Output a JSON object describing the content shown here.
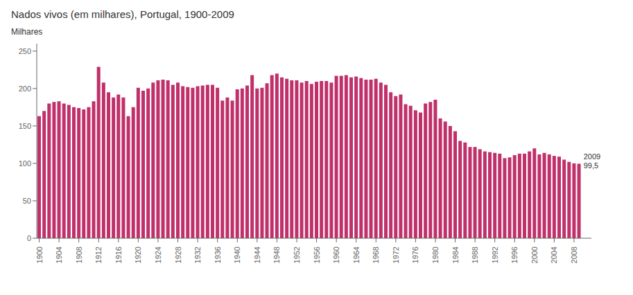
{
  "chart_data": {
    "type": "bar",
    "title": "Nados vivos (em milhares), Portugal, 1900-2009",
    "ylabel": "Milhares",
    "annotation": "2009\n99,5",
    "color": "#c0306a",
    "x": [
      1900,
      1901,
      1902,
      1903,
      1904,
      1905,
      1906,
      1907,
      1908,
      1909,
      1910,
      1911,
      1912,
      1913,
      1914,
      1915,
      1916,
      1917,
      1918,
      1919,
      1920,
      1921,
      1922,
      1923,
      1924,
      1925,
      1926,
      1927,
      1928,
      1929,
      1930,
      1931,
      1932,
      1933,
      1934,
      1935,
      1936,
      1937,
      1938,
      1939,
      1940,
      1941,
      1942,
      1943,
      1944,
      1945,
      1946,
      1947,
      1948,
      1949,
      1950,
      1951,
      1952,
      1953,
      1954,
      1955,
      1956,
      1957,
      1958,
      1959,
      1960,
      1961,
      1962,
      1963,
      1964,
      1965,
      1966,
      1967,
      1968,
      1969,
      1970,
      1971,
      1972,
      1973,
      1974,
      1975,
      1976,
      1977,
      1978,
      1979,
      1980,
      1981,
      1982,
      1983,
      1984,
      1985,
      1986,
      1987,
      1988,
      1989,
      1990,
      1991,
      1992,
      1993,
      1994,
      1995,
      1996,
      1997,
      1998,
      1999,
      2000,
      2001,
      2002,
      2003,
      2004,
      2005,
      2006,
      2007,
      2008,
      2009
    ],
    "values": [
      163,
      170,
      180,
      182,
      183,
      180,
      178,
      175,
      174,
      172,
      175,
      183,
      229,
      208,
      195,
      188,
      192,
      188,
      163,
      175,
      201,
      197,
      200,
      208,
      211,
      212,
      211,
      205,
      208,
      203,
      202,
      201,
      203,
      204,
      205,
      205,
      201,
      184,
      188,
      184,
      199,
      200,
      204,
      218,
      200,
      201,
      207,
      218,
      220,
      215,
      213,
      211,
      211,
      208,
      210,
      206,
      209,
      210,
      210,
      208,
      217,
      217,
      218,
      215,
      216,
      214,
      212,
      212,
      213,
      208,
      205,
      195,
      190,
      192,
      179,
      177,
      171,
      168,
      180,
      182,
      185,
      160,
      156,
      150,
      143,
      130,
      128,
      122,
      122,
      119,
      116,
      115,
      114,
      113,
      107,
      108,
      111,
      113,
      113,
      116,
      120,
      112,
      114,
      112,
      110,
      109,
      105,
      102,
      100,
      99.5
    ],
    "xlim": [
      1899.5,
      2011.5
    ],
    "xticks": [
      1900,
      1904,
      1908,
      1912,
      1916,
      1920,
      1924,
      1928,
      1932,
      1936,
      1940,
      1944,
      1948,
      1952,
      1956,
      1960,
      1964,
      1968,
      1972,
      1976,
      1980,
      1984,
      1988,
      1992,
      1996,
      2000,
      2004,
      2008
    ],
    "ylim": [
      0,
      260
    ],
    "yticks": [
      0,
      50,
      100,
      150,
      200,
      250
    ],
    "grid": false
  }
}
